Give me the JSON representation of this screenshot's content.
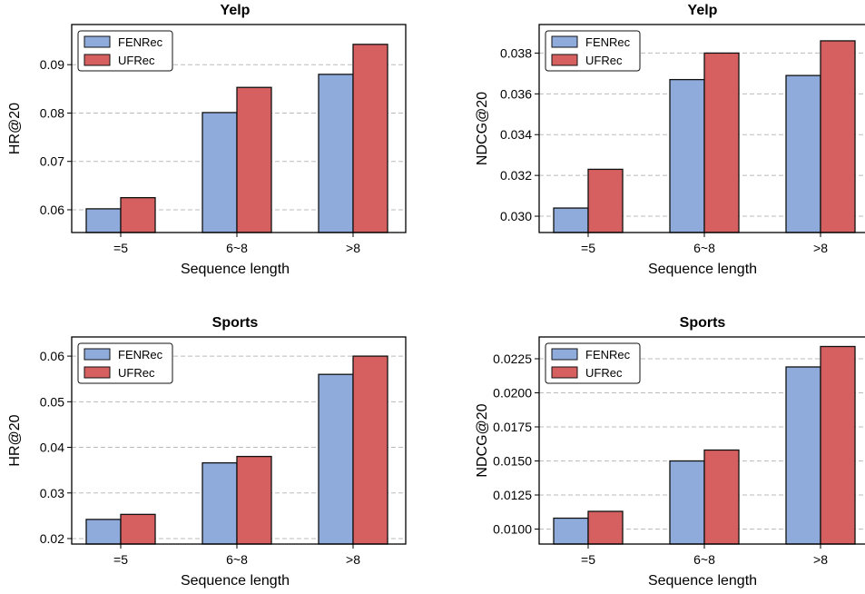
{
  "colors": {
    "FENRec": "#8eabdc",
    "UFRec": "#d65f5f"
  },
  "chart_data": [
    {
      "type": "bar",
      "title": "Yelp",
      "xlabel": "Sequence length",
      "ylabel": "HR@20",
      "categories": [
        "=5",
        "6~8",
        ">8"
      ],
      "series": [
        {
          "name": "FENRec",
          "values": [
            0.0602,
            0.0801,
            0.088
          ]
        },
        {
          "name": "UFRec",
          "values": [
            0.0625,
            0.0853,
            0.0942
          ]
        }
      ],
      "ylim": [
        0.0553,
        0.0983
      ],
      "yticks": [
        "0.06",
        "0.07",
        "0.08",
        "0.09"
      ],
      "grid": true,
      "legend": "top-left"
    },
    {
      "type": "bar",
      "title": "Yelp",
      "xlabel": "Sequence length",
      "ylabel": "NDCG@20",
      "categories": [
        "=5",
        "6~8",
        ">8"
      ],
      "series": [
        {
          "name": "FENRec",
          "values": [
            0.0304,
            0.0367,
            0.0369
          ]
        },
        {
          "name": "UFRec",
          "values": [
            0.0323,
            0.038,
            0.0386
          ]
        }
      ],
      "ylim": [
        0.0292,
        0.0394
      ],
      "yticks": [
        "0.030",
        "0.032",
        "0.034",
        "0.036",
        "0.038"
      ],
      "grid": true,
      "legend": "top-left"
    },
    {
      "type": "bar",
      "title": "Sports",
      "xlabel": "Sequence length",
      "ylabel": "HR@20",
      "categories": [
        "=5",
        "6~8",
        ">8"
      ],
      "series": [
        {
          "name": "FENRec",
          "values": [
            0.0242,
            0.0366,
            0.056
          ]
        },
        {
          "name": "UFRec",
          "values": [
            0.0253,
            0.038,
            0.06
          ]
        }
      ],
      "ylim": [
        0.0188,
        0.0642
      ],
      "yticks": [
        "0.02",
        "0.03",
        "0.04",
        "0.05",
        "0.06"
      ],
      "grid": true,
      "legend": "top-left"
    },
    {
      "type": "bar",
      "title": "Sports",
      "xlabel": "Sequence length",
      "ylabel": "NDCG@20",
      "categories": [
        "=5",
        "6~8",
        ">8"
      ],
      "series": [
        {
          "name": "FENRec",
          "values": [
            0.0108,
            0.015,
            0.0219
          ]
        },
        {
          "name": "UFRec",
          "values": [
            0.0113,
            0.0158,
            0.0234
          ]
        }
      ],
      "ylim": [
        0.0089,
        0.0241
      ],
      "yticks": [
        "0.0100",
        "0.0125",
        "0.0150",
        "0.0175",
        "0.0200",
        "0.0225"
      ],
      "grid": true,
      "legend": "top-left"
    }
  ]
}
